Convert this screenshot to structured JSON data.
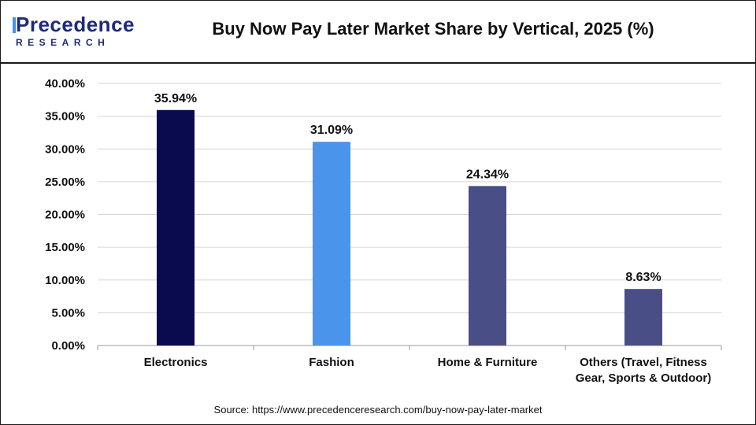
{
  "header": {
    "logo_top": "Precedence",
    "logo_bottom": "RESEARCH",
    "title": "Buy Now Pay Later Market Share by Vertical, 2025 (%)"
  },
  "source": "Source: https://www.precedenceresearch.com/buy-now-pay-later-market",
  "chart_data": {
    "type": "bar",
    "title": "Buy Now Pay Later Market Share by Vertical, 2025 (%)",
    "categories": [
      [
        "Electronics"
      ],
      [
        "Fashion"
      ],
      [
        "Home & Furniture"
      ],
      [
        "Others (Travel, Fitness",
        "Gear, Sports & Outdoor)"
      ]
    ],
    "values": [
      35.94,
      31.09,
      24.34,
      8.63
    ],
    "value_labels": [
      "35.94%",
      "31.09%",
      "24.34%",
      "8.63%"
    ],
    "colors": [
      "#0a0a4e",
      "#4a94ec",
      "#4a4e86",
      "#4a4e86"
    ],
    "ylim": [
      0,
      40
    ],
    "yticks": [
      "0.00%",
      "5.00%",
      "10.00%",
      "15.00%",
      "20.00%",
      "25.00%",
      "30.00%",
      "35.00%",
      "40.00%"
    ],
    "grid": true,
    "xlabel": "",
    "ylabel": ""
  }
}
